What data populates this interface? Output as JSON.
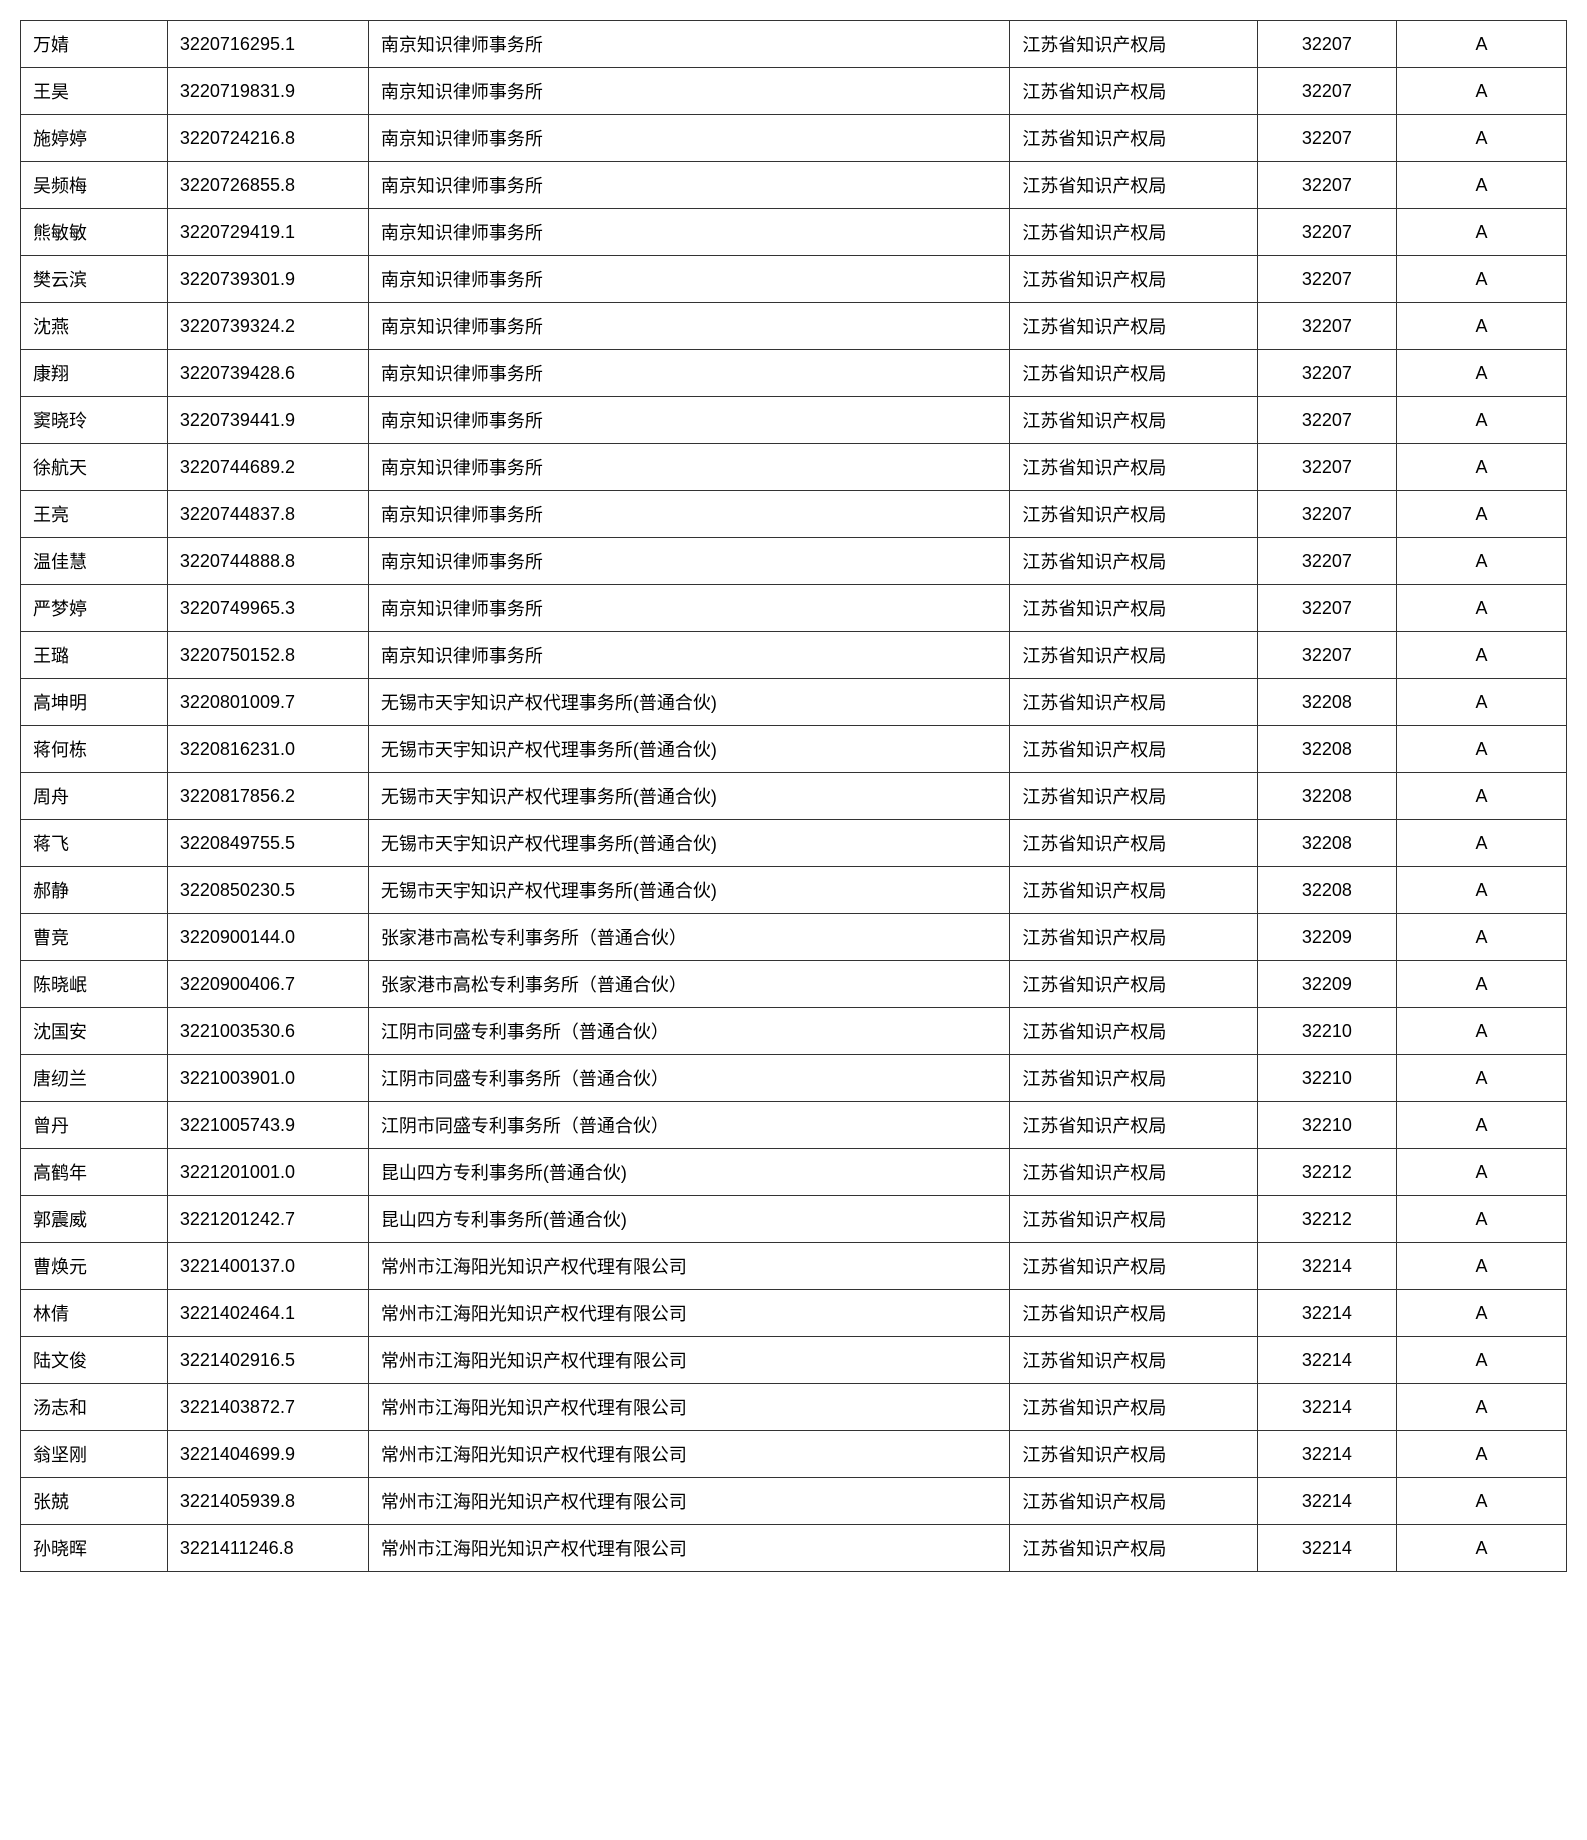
{
  "table": {
    "columns": [
      {
        "key": "name",
        "class": "col-name",
        "align": "left"
      },
      {
        "key": "id",
        "class": "col-id",
        "align": "left"
      },
      {
        "key": "firm",
        "class": "col-firm",
        "align": "left"
      },
      {
        "key": "authority",
        "class": "col-authority",
        "align": "left"
      },
      {
        "key": "code",
        "class": "col-code",
        "align": "center"
      },
      {
        "key": "grade",
        "class": "col-grade",
        "align": "center"
      }
    ],
    "rows": [
      {
        "name": "万婧",
        "id": "3220716295.1",
        "firm": "南京知识律师事务所",
        "authority": "江苏省知识产权局",
        "code": "32207",
        "grade": "A"
      },
      {
        "name": "王昊",
        "id": "3220719831.9",
        "firm": "南京知识律师事务所",
        "authority": "江苏省知识产权局",
        "code": "32207",
        "grade": "A"
      },
      {
        "name": "施婷婷",
        "id": "3220724216.8",
        "firm": "南京知识律师事务所",
        "authority": "江苏省知识产权局",
        "code": "32207",
        "grade": "A"
      },
      {
        "name": "吴频梅",
        "id": "3220726855.8",
        "firm": "南京知识律师事务所",
        "authority": "江苏省知识产权局",
        "code": "32207",
        "grade": "A"
      },
      {
        "name": "熊敏敏",
        "id": "3220729419.1",
        "firm": "南京知识律师事务所",
        "authority": "江苏省知识产权局",
        "code": "32207",
        "grade": "A"
      },
      {
        "name": "樊云滨",
        "id": "3220739301.9",
        "firm": "南京知识律师事务所",
        "authority": "江苏省知识产权局",
        "code": "32207",
        "grade": "A"
      },
      {
        "name": "沈燕",
        "id": "3220739324.2",
        "firm": "南京知识律师事务所",
        "authority": "江苏省知识产权局",
        "code": "32207",
        "grade": "A"
      },
      {
        "name": "康翔",
        "id": "3220739428.6",
        "firm": "南京知识律师事务所",
        "authority": "江苏省知识产权局",
        "code": "32207",
        "grade": "A"
      },
      {
        "name": "窦晓玲",
        "id": "3220739441.9",
        "firm": "南京知识律师事务所",
        "authority": "江苏省知识产权局",
        "code": "32207",
        "grade": "A"
      },
      {
        "name": "徐航天",
        "id": "3220744689.2",
        "firm": "南京知识律师事务所",
        "authority": "江苏省知识产权局",
        "code": "32207",
        "grade": "A"
      },
      {
        "name": "王亮",
        "id": "3220744837.8",
        "firm": "南京知识律师事务所",
        "authority": "江苏省知识产权局",
        "code": "32207",
        "grade": "A"
      },
      {
        "name": "温佳慧",
        "id": "3220744888.8",
        "firm": "南京知识律师事务所",
        "authority": "江苏省知识产权局",
        "code": "32207",
        "grade": "A"
      },
      {
        "name": "严梦婷",
        "id": "3220749965.3",
        "firm": "南京知识律师事务所",
        "authority": "江苏省知识产权局",
        "code": "32207",
        "grade": "A"
      },
      {
        "name": "王璐",
        "id": "3220750152.8",
        "firm": "南京知识律师事务所",
        "authority": "江苏省知识产权局",
        "code": "32207",
        "grade": "A"
      },
      {
        "name": "高坤明",
        "id": "3220801009.7",
        "firm": "无锡市天宇知识产权代理事务所(普通合伙)",
        "authority": "江苏省知识产权局",
        "code": "32208",
        "grade": "A"
      },
      {
        "name": "蒋何栋",
        "id": "3220816231.0",
        "firm": "无锡市天宇知识产权代理事务所(普通合伙)",
        "authority": "江苏省知识产权局",
        "code": "32208",
        "grade": "A"
      },
      {
        "name": "周舟",
        "id": "3220817856.2",
        "firm": "无锡市天宇知识产权代理事务所(普通合伙)",
        "authority": "江苏省知识产权局",
        "code": "32208",
        "grade": "A"
      },
      {
        "name": "蒋飞",
        "id": "3220849755.5",
        "firm": "无锡市天宇知识产权代理事务所(普通合伙)",
        "authority": "江苏省知识产权局",
        "code": "32208",
        "grade": "A"
      },
      {
        "name": "郝静",
        "id": "3220850230.5",
        "firm": "无锡市天宇知识产权代理事务所(普通合伙)",
        "authority": "江苏省知识产权局",
        "code": "32208",
        "grade": "A"
      },
      {
        "name": "曹竞",
        "id": "3220900144.0",
        "firm": "张家港市高松专利事务所（普通合伙）",
        "authority": "江苏省知识产权局",
        "code": "32209",
        "grade": "A"
      },
      {
        "name": "陈晓岷",
        "id": "3220900406.7",
        "firm": "张家港市高松专利事务所（普通合伙）",
        "authority": "江苏省知识产权局",
        "code": "32209",
        "grade": "A"
      },
      {
        "name": "沈国安",
        "id": "3221003530.6",
        "firm": "江阴市同盛专利事务所（普通合伙）",
        "authority": "江苏省知识产权局",
        "code": "32210",
        "grade": "A"
      },
      {
        "name": "唐纫兰",
        "id": "3221003901.0",
        "firm": "江阴市同盛专利事务所（普通合伙）",
        "authority": "江苏省知识产权局",
        "code": "32210",
        "grade": "A"
      },
      {
        "name": "曾丹",
        "id": "3221005743.9",
        "firm": "江阴市同盛专利事务所（普通合伙）",
        "authority": "江苏省知识产权局",
        "code": "32210",
        "grade": "A"
      },
      {
        "name": "高鹤年",
        "id": "3221201001.0",
        "firm": "昆山四方专利事务所(普通合伙)",
        "authority": "江苏省知识产权局",
        "code": "32212",
        "grade": "A"
      },
      {
        "name": "郭震威",
        "id": "3221201242.7",
        "firm": "昆山四方专利事务所(普通合伙)",
        "authority": "江苏省知识产权局",
        "code": "32212",
        "grade": "A"
      },
      {
        "name": "曹焕元",
        "id": "3221400137.0",
        "firm": "常州市江海阳光知识产权代理有限公司",
        "authority": "江苏省知识产权局",
        "code": "32214",
        "grade": "A"
      },
      {
        "name": "林倩",
        "id": "3221402464.1",
        "firm": "常州市江海阳光知识产权代理有限公司",
        "authority": "江苏省知识产权局",
        "code": "32214",
        "grade": "A"
      },
      {
        "name": "陆文俊",
        "id": "3221402916.5",
        "firm": "常州市江海阳光知识产权代理有限公司",
        "authority": "江苏省知识产权局",
        "code": "32214",
        "grade": "A"
      },
      {
        "name": "汤志和",
        "id": "3221403872.7",
        "firm": "常州市江海阳光知识产权代理有限公司",
        "authority": "江苏省知识产权局",
        "code": "32214",
        "grade": "A"
      },
      {
        "name": "翁坚刚",
        "id": "3221404699.9",
        "firm": "常州市江海阳光知识产权代理有限公司",
        "authority": "江苏省知识产权局",
        "code": "32214",
        "grade": "A"
      },
      {
        "name": "张兢",
        "id": "3221405939.8",
        "firm": "常州市江海阳光知识产权代理有限公司",
        "authority": "江苏省知识产权局",
        "code": "32214",
        "grade": "A"
      },
      {
        "name": "孙晓晖",
        "id": "3221411246.8",
        "firm": "常州市江海阳光知识产权代理有限公司",
        "authority": "江苏省知识产权局",
        "code": "32214",
        "grade": "A"
      }
    ],
    "style": {
      "border_color": "#333333",
      "font_size": 18,
      "row_padding": "10px 12px",
      "background": "#ffffff",
      "text_color": "#000000"
    }
  }
}
